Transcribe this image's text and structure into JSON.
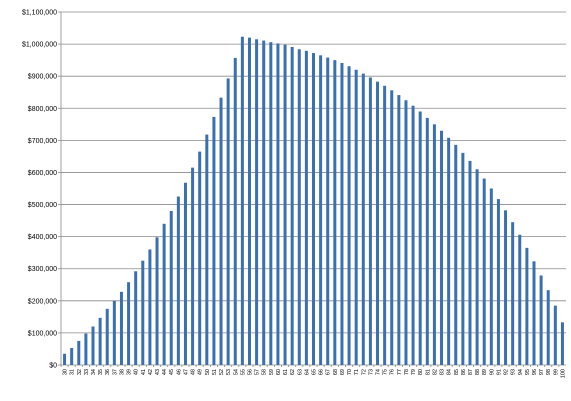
{
  "chart_data": {
    "type": "bar",
    "title": "",
    "xlabel": "",
    "ylabel": "",
    "ylim": [
      0,
      1100000
    ],
    "y_ticks": [
      0,
      100000,
      200000,
      300000,
      400000,
      500000,
      600000,
      700000,
      800000,
      900000,
      1000000,
      1100000
    ],
    "y_tick_labels": [
      "$0",
      "$100,000",
      "$200,000",
      "$300,000",
      "$400,000",
      "$500,000",
      "$600,000",
      "$700,000",
      "$800,000",
      "$900,000",
      "$1,000,000",
      "$1,100,000"
    ],
    "grid": true,
    "legend": "none",
    "bar_color": "#3a6fb0",
    "categories": [
      "30",
      "31",
      "32",
      "33",
      "34",
      "35",
      "36",
      "37",
      "38",
      "39",
      "40",
      "41",
      "42",
      "43",
      "44",
      "45",
      "46",
      "47",
      "48",
      "49",
      "50",
      "51",
      "52",
      "53",
      "54",
      "55",
      "56",
      "57",
      "58",
      "59",
      "60",
      "61",
      "62",
      "63",
      "64",
      "65",
      "66",
      "67",
      "68",
      "69",
      "70",
      "71",
      "72",
      "73",
      "74",
      "75",
      "76",
      "77",
      "78",
      "79",
      "80",
      "81",
      "82",
      "83",
      "84",
      "85",
      "86",
      "87",
      "88",
      "89",
      "90",
      "91",
      "92",
      "93",
      "94",
      "95",
      "96",
      "97",
      "98",
      "99",
      "100"
    ],
    "values": [
      35000,
      53000,
      75000,
      98000,
      120000,
      147000,
      175000,
      200000,
      228000,
      258000,
      292000,
      325000,
      360000,
      398000,
      440000,
      480000,
      525000,
      568000,
      615000,
      665000,
      718000,
      773000,
      833000,
      893000,
      957000,
      1023000,
      1020000,
      1015000,
      1011000,
      1006000,
      1002000,
      998000,
      991000,
      984000,
      979000,
      972000,
      965000,
      958000,
      950000,
      941000,
      931000,
      920000,
      908000,
      896000,
      883000,
      870000,
      856000,
      841000,
      825000,
      808000,
      790000,
      770000,
      750000,
      730000,
      708000,
      686000,
      661000,
      636000,
      610000,
      581000,
      550000,
      517000,
      482000,
      445000,
      406000,
      365000,
      323000,
      279000,
      233000,
      185000,
      133000
    ]
  }
}
